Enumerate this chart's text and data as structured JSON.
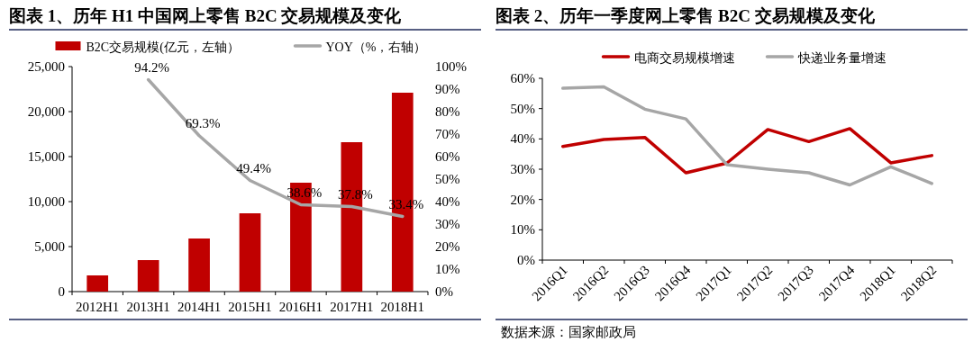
{
  "chart_data": [
    {
      "type": "bar",
      "title": "图表 1、历年 H1 中国网上零售 B2C 交易规模及变化",
      "categories": [
        "2012H1",
        "2013H1",
        "2014H1",
        "2015H1",
        "2016H1",
        "2017H1",
        "2018H1"
      ],
      "series": [
        {
          "name": "B2C交易规模(亿元，左轴）",
          "color": "#c00000",
          "values": [
            1800,
            3500,
            5900,
            8700,
            12100,
            16600,
            22100
          ]
        },
        {
          "name": "YOY（%，右轴）",
          "type": "line",
          "axis": "y2",
          "color": "#a6a6a6",
          "values": [
            null,
            94.2,
            69.3,
            49.4,
            38.6,
            37.8,
            33.4
          ],
          "value_labels": [
            null,
            "94.2%",
            "69.3%",
            "49.4%",
            "38.6%",
            "37.8%",
            "33.4%"
          ]
        }
      ],
      "ylim": [
        0,
        25000
      ],
      "yticks": [
        {
          "value": 0,
          "label": "0"
        },
        {
          "value": 5000,
          "label": "5,000"
        },
        {
          "value": 10000,
          "label": "10,000"
        },
        {
          "value": 15000,
          "label": "15,000"
        },
        {
          "value": 20000,
          "label": "20,000"
        },
        {
          "value": 25000,
          "label": "25,000"
        }
      ],
      "y2lim": [
        0,
        100
      ],
      "y2ticks": [
        {
          "value": 0,
          "label": "0%"
        },
        {
          "value": 10,
          "label": "10%"
        },
        {
          "value": 20,
          "label": "20%"
        },
        {
          "value": 30,
          "label": "30%"
        },
        {
          "value": 40,
          "label": "40%"
        },
        {
          "value": 50,
          "label": "50%"
        },
        {
          "value": 60,
          "label": "60%"
        },
        {
          "value": 70,
          "label": "70%"
        },
        {
          "value": 80,
          "label": "80%"
        },
        {
          "value": 90,
          "label": "90%"
        },
        {
          "value": 100,
          "label": "100%"
        }
      ],
      "legend": "top",
      "grid": false
    },
    {
      "type": "line",
      "title": "图表 2、历年一季度网上零售 B2C 交易规模及变化",
      "categories": [
        "2016Q1",
        "2016Q2",
        "2016Q3",
        "2016Q4",
        "2017Q1",
        "2017Q2",
        "2017Q3",
        "2017Q4",
        "2018Q1",
        "2018Q2"
      ],
      "series": [
        {
          "name": "电商交易规模增速",
          "color": "#c00000",
          "values": [
            37.5,
            39.8,
            40.5,
            28.8,
            32,
            43.1,
            39.1,
            43.4,
            32.1,
            34.5
          ]
        },
        {
          "name": "快递业务量增速",
          "color": "#a6a6a6",
          "values": [
            56.7,
            57.2,
            49.8,
            46.6,
            31.5,
            30,
            28.8,
            24.8,
            30.8,
            25.3
          ]
        }
      ],
      "ylim": [
        0,
        60
      ],
      "yticks": [
        {
          "value": 0,
          "label": "0%"
        },
        {
          "value": 10,
          "label": "10%"
        },
        {
          "value": 20,
          "label": "20%"
        },
        {
          "value": 30,
          "label": "30%"
        },
        {
          "value": 40,
          "label": "40%"
        },
        {
          "value": 50,
          "label": "50%"
        },
        {
          "value": 60,
          "label": "60%"
        }
      ],
      "legend": "top",
      "grid": false,
      "annotations": [
        "数据来源：国家邮政局"
      ]
    }
  ]
}
